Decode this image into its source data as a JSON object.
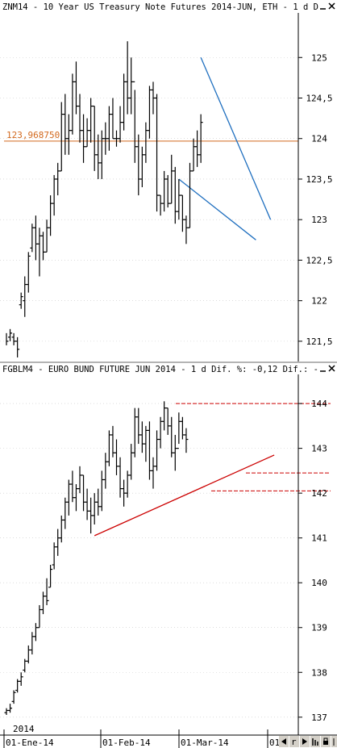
{
  "chart_data": [
    {
      "type": "bar",
      "title": "ZNM14 - 10 Year US Treasury Note Futures 2014-JUN, ETH -  1 d D",
      "ylim": [
        121.25,
        125.55
      ],
      "y_ticks": [
        "125",
        "124,5",
        "124",
        "123,5",
        "123",
        "122,5",
        "122",
        "121,5"
      ],
      "y_tick_values": [
        125,
        124.5,
        124,
        123.5,
        123,
        122.5,
        122,
        121.5
      ],
      "price_line": {
        "label": "123,968750",
        "value": 123.96875,
        "color": "#d2691e"
      },
      "trendlines": [
        {
          "from": {
            "bar": 47,
            "value": 123.5
          },
          "to": {
            "bar": 68,
            "value": 122.75
          },
          "color": "#1f6fbf"
        },
        {
          "from": {
            "bar": 53,
            "value": 125.0
          },
          "to": {
            "bar": 72,
            "value": 123.0
          },
          "color": "#1f6fbf"
        }
      ],
      "bars": [
        [
          121.6,
          121.45,
          null,
          121.5
        ],
        [
          121.65,
          121.5,
          121.55,
          121.6
        ],
        [
          121.6,
          121.45,
          121.55,
          121.5
        ],
        [
          121.55,
          121.3,
          121.5,
          121.4
        ],
        [
          122.1,
          121.9,
          121.95,
          122.05
        ],
        [
          122.3,
          121.8,
          122.0,
          122.2
        ],
        [
          122.6,
          122.1,
          122.2,
          122.55
        ],
        [
          122.95,
          122.6,
          122.65,
          122.9
        ],
        [
          123.05,
          122.5,
          122.9,
          122.7
        ],
        [
          122.9,
          122.3,
          122.7,
          122.8
        ],
        [
          122.85,
          122.5,
          122.8,
          122.6
        ],
        [
          123.0,
          122.6,
          122.6,
          122.9
        ],
        [
          123.3,
          122.8,
          122.9,
          123.2
        ],
        [
          123.55,
          123.05,
          123.2,
          123.5
        ],
        [
          123.7,
          123.3,
          123.5,
          123.6
        ],
        [
          124.45,
          123.6,
          123.6,
          124.3
        ],
        [
          124.55,
          123.8,
          124.3,
          124.0
        ],
        [
          124.3,
          123.8,
          124.0,
          124.1
        ],
        [
          124.8,
          124.05,
          124.1,
          124.7
        ],
        [
          124.95,
          124.3,
          124.7,
          124.4
        ],
        [
          124.55,
          123.95,
          124.4,
          124.1
        ],
        [
          124.3,
          123.7,
          124.1,
          123.9
        ],
        [
          124.25,
          123.9,
          123.9,
          124.1
        ],
        [
          124.5,
          123.95,
          124.1,
          124.4
        ],
        [
          124.4,
          123.6,
          124.4,
          123.8
        ],
        [
          124.05,
          123.5,
          123.8,
          123.7
        ],
        [
          124.1,
          123.5,
          123.7,
          124.0
        ],
        [
          124.2,
          123.8,
          124.0,
          124.0
        ],
        [
          124.4,
          123.85,
          124.0,
          124.3
        ],
        [
          124.5,
          124.0,
          124.3,
          124.0
        ],
        [
          124.1,
          123.9,
          124.0,
          124.0
        ],
        [
          124.4,
          123.95,
          124.0,
          124.2
        ],
        [
          124.8,
          124.1,
          124.2,
          124.7
        ],
        [
          125.2,
          124.3,
          124.7,
          124.5
        ],
        [
          125.0,
          124.3,
          124.5,
          124.7
        ],
        [
          124.6,
          123.7,
          124.7,
          123.9
        ],
        [
          124.05,
          123.3,
          123.9,
          123.5
        ],
        [
          123.9,
          123.4,
          123.5,
          123.8
        ],
        [
          124.2,
          123.7,
          123.8,
          124.1
        ],
        [
          124.65,
          124.0,
          124.1,
          124.6
        ],
        [
          124.7,
          124.3,
          124.6,
          124.5
        ],
        [
          124.55,
          123.1,
          124.5,
          123.3
        ],
        [
          123.3,
          123.05,
          123.3,
          123.2
        ],
        [
          123.6,
          123.1,
          123.2,
          123.5
        ],
        [
          123.55,
          123.15,
          123.5,
          123.2
        ],
        [
          123.8,
          123.2,
          123.2,
          123.6
        ],
        [
          123.65,
          122.95,
          123.6,
          123.1
        ],
        [
          123.5,
          123.0,
          123.1,
          123.3
        ],
        [
          123.3,
          122.85,
          123.3,
          123.0
        ],
        [
          123.05,
          122.7,
          123.0,
          122.9
        ],
        [
          123.7,
          122.9,
          122.9,
          123.6
        ],
        [
          124.0,
          123.6,
          123.6,
          123.9
        ],
        [
          124.1,
          123.65,
          123.9,
          123.8
        ],
        [
          124.3,
          123.7,
          123.8,
          124.2
        ]
      ]
    },
    {
      "type": "bar",
      "title": "FGBLM4 - EURO BUND FUTURE JUN 2014 -  1 d Dif. %: -0,12 Dif.: -",
      "ylim": [
        136.6,
        144.65
      ],
      "y_ticks": [
        "144",
        "143",
        "142",
        "141",
        "140",
        "139",
        "138",
        "137"
      ],
      "y_tick_values": [
        144,
        143,
        142,
        141,
        140,
        139,
        138,
        137
      ],
      "hlines": [
        {
          "value": 144.0,
          "color": "#cc0000"
        },
        {
          "value": 142.45,
          "color": "#cc0000"
        },
        {
          "value": 142.05,
          "color": "#cc0000"
        }
      ],
      "trendlines": [
        {
          "from": {
            "bar": 24,
            "value": 141.05
          },
          "to": {
            "bar": 73,
            "value": 142.85
          },
          "color": "#cc0000"
        }
      ],
      "bars": [
        [
          137.2,
          137.05,
          137.1,
          137.15
        ],
        [
          137.3,
          137.1,
          137.15,
          137.2
        ],
        [
          137.6,
          137.3,
          137.35,
          137.55
        ],
        [
          137.85,
          137.55,
          137.6,
          137.8
        ],
        [
          138.0,
          137.7,
          137.8,
          137.9
        ],
        [
          138.3,
          138.0,
          138.05,
          138.25
        ],
        [
          138.6,
          138.2,
          138.25,
          138.5
        ],
        [
          138.9,
          138.4,
          138.5,
          138.8
        ],
        [
          139.1,
          138.7,
          138.8,
          139.0
        ],
        [
          139.5,
          139.0,
          139.0,
          139.4
        ],
        [
          139.8,
          139.3,
          139.4,
          139.7
        ],
        [
          140.1,
          139.5,
          139.7,
          139.6
        ],
        [
          140.4,
          139.9,
          139.9,
          140.3
        ],
        [
          140.9,
          140.3,
          140.4,
          140.8
        ],
        [
          141.2,
          140.6,
          140.8,
          141.0
        ],
        [
          141.5,
          140.9,
          141.0,
          141.4
        ],
        [
          141.9,
          141.2,
          141.4,
          141.8
        ],
        [
          142.3,
          141.5,
          141.8,
          142.2
        ],
        [
          142.5,
          141.8,
          142.2,
          141.9
        ],
        [
          142.2,
          141.6,
          141.9,
          142.1
        ],
        [
          142.6,
          142.0,
          142.1,
          142.4
        ],
        [
          142.4,
          141.6,
          142.4,
          141.8
        ],
        [
          142.1,
          141.4,
          141.8,
          141.6
        ],
        [
          141.9,
          141.1,
          141.6,
          141.5
        ],
        [
          142.0,
          141.3,
          141.5,
          141.8
        ],
        [
          142.1,
          141.5,
          141.8,
          141.7
        ],
        [
          142.5,
          141.6,
          141.7,
          142.3
        ],
        [
          142.9,
          142.1,
          142.3,
          142.7
        ],
        [
          143.4,
          142.6,
          142.7,
          143.3
        ],
        [
          143.5,
          142.8,
          143.3,
          142.9
        ],
        [
          143.2,
          142.4,
          142.9,
          142.6
        ],
        [
          142.8,
          141.9,
          142.6,
          142.1
        ],
        [
          142.3,
          141.7,
          142.1,
          142.0
        ],
        [
          142.5,
          141.9,
          142.0,
          142.4
        ],
        [
          143.1,
          142.3,
          142.4,
          142.9
        ],
        [
          143.9,
          142.8,
          142.9,
          143.7
        ],
        [
          143.9,
          143.1,
          143.7,
          143.3
        ],
        [
          143.6,
          142.9,
          143.3,
          143.1
        ],
        [
          143.5,
          142.7,
          143.1,
          143.4
        ],
        [
          143.6,
          142.3,
          143.4,
          142.5
        ],
        [
          142.8,
          142.1,
          142.5,
          142.6
        ],
        [
          143.4,
          142.5,
          142.6,
          143.2
        ],
        [
          143.7,
          143.0,
          143.2,
          143.6
        ],
        [
          144.05,
          143.4,
          143.6,
          143.9
        ],
        [
          143.9,
          143.3,
          143.9,
          143.5
        ],
        [
          143.7,
          142.8,
          143.5,
          142.9
        ],
        [
          143.3,
          142.5,
          142.9,
          143.0
        ],
        [
          143.8,
          143.1,
          143.0,
          143.6
        ],
        [
          143.7,
          143.2,
          143.6,
          143.3
        ],
        [
          143.45,
          142.9,
          143.3,
          143.2
        ]
      ]
    }
  ],
  "x_axis": {
    "ticks": [
      "01-Ene-14",
      "01-Feb-14",
      "01-Mar-14",
      "01"
    ],
    "year_label": "2014"
  },
  "colors": {
    "bar": "#000000",
    "axis": "#000000",
    "grid": "#c8c8c8",
    "panel_divider": "#b4b4b4",
    "window_gray": "#d4d0c8"
  },
  "controls": {
    "close_icon_1": "close-icon",
    "minimize_icon_1": "minimize-icon",
    "close_icon_2": "close-icon",
    "minimize_icon_2": "minimize-icon",
    "scroll_icons": [
      "scroll-left-icon",
      "scroll-right-icon",
      "zoom-icon",
      "bars-icon"
    ]
  }
}
